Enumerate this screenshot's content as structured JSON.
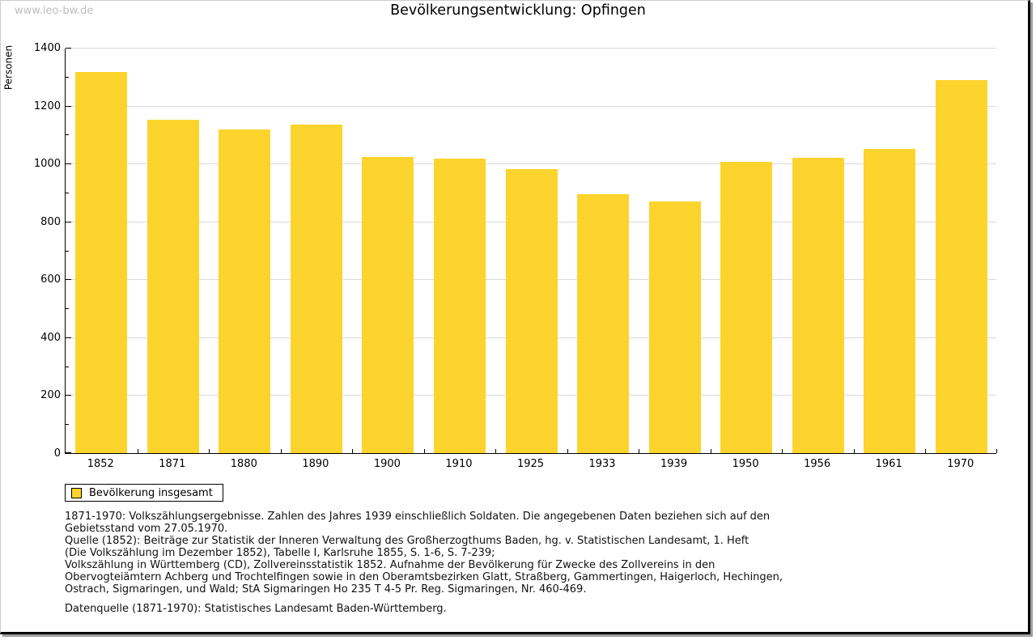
{
  "page": {
    "watermark": "www.leo-bw.de",
    "title": "Bevölkerungsentwicklung: Opfingen"
  },
  "chart_data": {
    "type": "bar",
    "title": "Bevölkerungsentwicklung: Opfingen",
    "ylabel": "Personen",
    "xlabel": "",
    "categories": [
      "1852",
      "1871",
      "1880",
      "1890",
      "1900",
      "1910",
      "1925",
      "1933",
      "1939",
      "1950",
      "1956",
      "1961",
      "1970"
    ],
    "values": [
      1316,
      1152,
      1117,
      1134,
      1023,
      1016,
      981,
      894,
      869,
      1006,
      1020,
      1050,
      1288
    ],
    "series_name": "Bevölkerung insgesamt",
    "ylim": [
      0,
      1400
    ],
    "yticks": [
      0,
      200,
      400,
      600,
      800,
      1000,
      1200,
      1400
    ],
    "minor_ytick_step": 100,
    "grid": true,
    "legend_position": "bottom-left"
  },
  "legend": {
    "label": "Bevölkerung insgesamt"
  },
  "colors": {
    "bar": "#FDD42D",
    "grid": "#d9d9d9",
    "axis": "#000000",
    "watermark": "#bcbcbc"
  },
  "footnotes": {
    "lines": [
      "1871-1970: Volkszählungsergebnisse. Zahlen des Jahres 1939 einschließlich Soldaten. Die angegebenen Daten beziehen sich auf den",
      "Gebietsstand vom 27.05.1970.",
      "Quelle (1852): Beiträge zur Statistik der Inneren Verwaltung des Großherzogthums Baden, hg. v. Statistischen Landesamt, 1. Heft",
      "(Die Volkszählung im Dezember 1852), Tabelle I, Karlsruhe 1855, S. 1-6, S. 7-239;",
      "Volkszählung in Württemberg (CD), Zollvereinsstatistik 1852. Aufnahme der Bevölkerung für Zwecke des Zollvereins in den",
      "Obervogteiämtern Achberg und Trochtelfingen sowie in den Oberamtsbezirken Glatt, Straßberg, Gammertingen, Haigerloch, Hechingen,",
      "Ostrach, Sigmaringen, und Wald; StA Sigmaringen Ho 235 T 4-5 Pr. Reg. Sigmaringen, Nr. 460-469."
    ],
    "datasource": "Datenquelle (1871-1970): Statistisches Landesamt Baden-Württemberg."
  }
}
